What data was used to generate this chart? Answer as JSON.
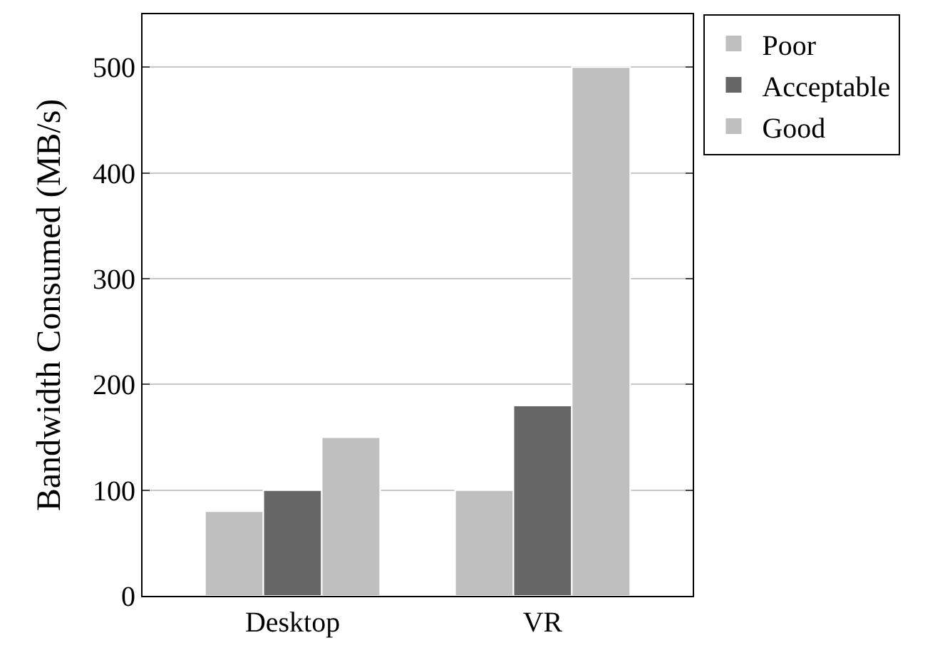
{
  "chart_data": {
    "type": "bar",
    "ylabel": "Bandwidth Consumed (MB/s)",
    "categories": [
      "Desktop",
      "VR"
    ],
    "series": [
      {
        "name": "Poor",
        "color": "#bfbfbf",
        "values": [
          80,
          100
        ]
      },
      {
        "name": "Acceptable",
        "color": "#666666",
        "values": [
          100,
          180
        ]
      },
      {
        "name": "Good",
        "color": "#bfbfbf",
        "values": [
          150,
          500
        ]
      }
    ],
    "ylim": [
      0,
      550
    ],
    "yticks": [
      0,
      100,
      200,
      300,
      400,
      500
    ],
    "grid": "y",
    "legend": "top right"
  }
}
